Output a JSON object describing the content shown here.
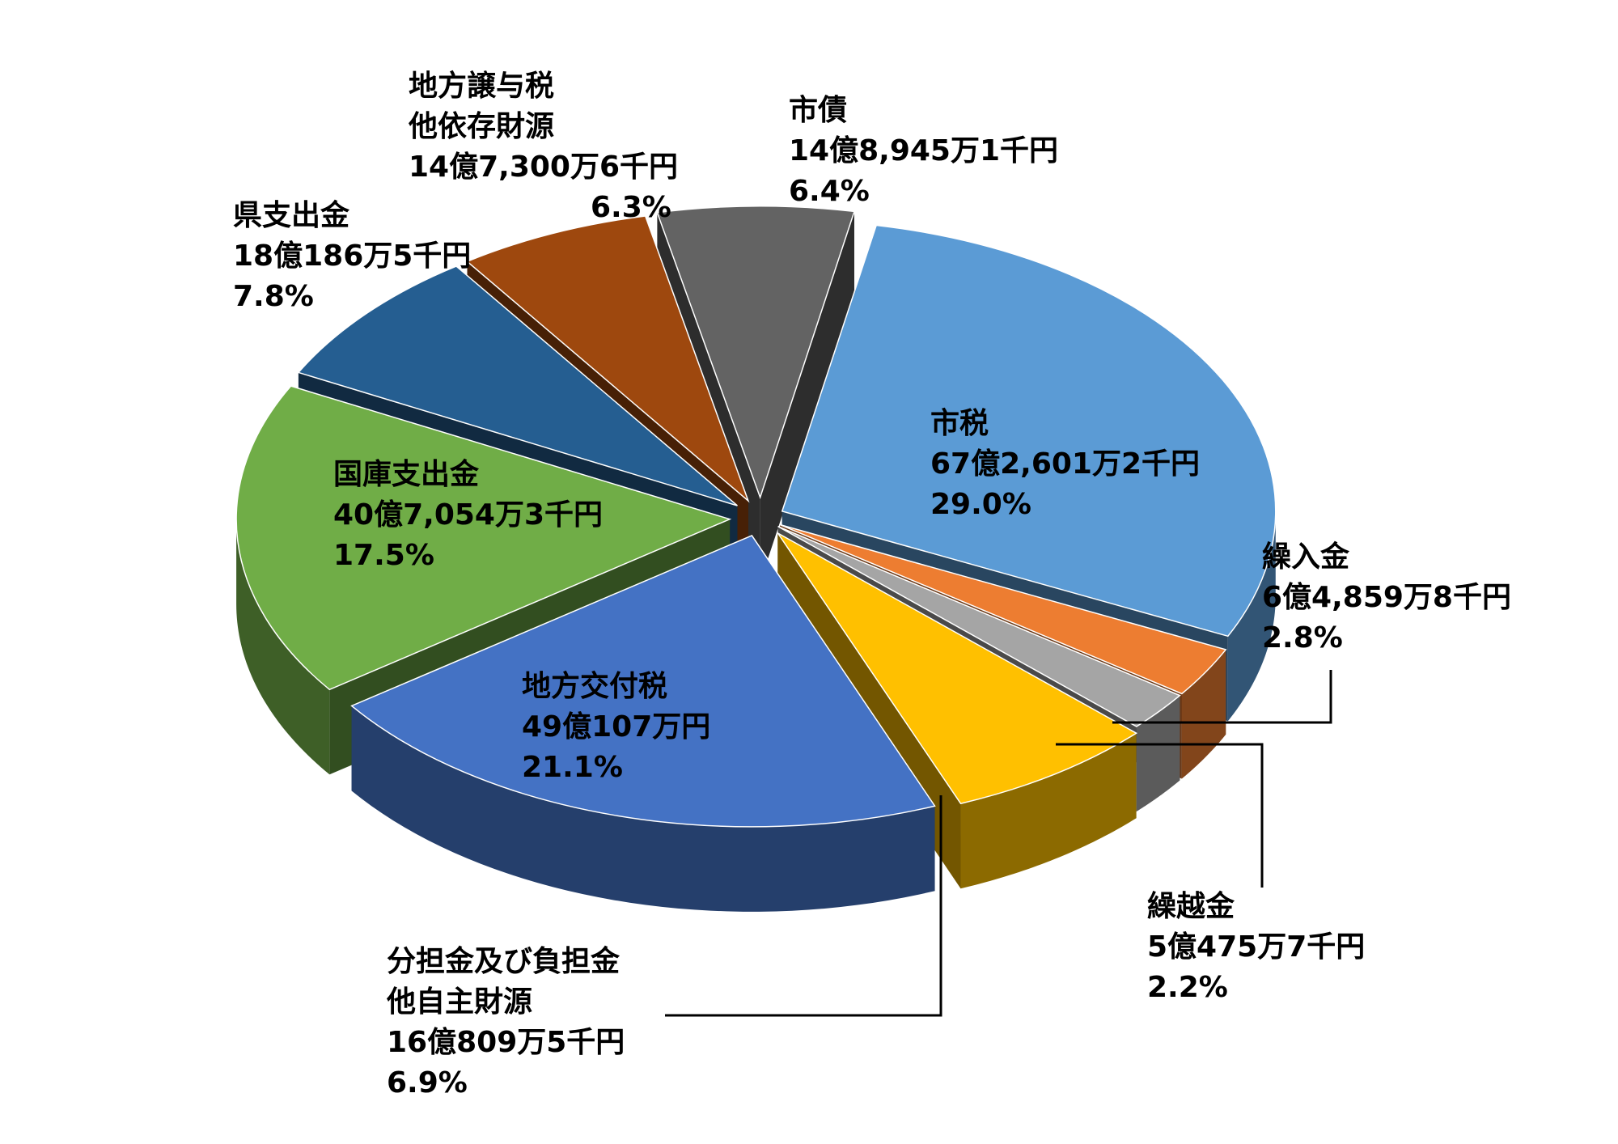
{
  "chart_data": {
    "type": "pie",
    "title": "",
    "style": "3d-exploded",
    "unit_label": "千円",
    "slices": [
      {
        "name": "市税",
        "value_text": "67億2,601万2千円",
        "percent": 29.0,
        "percent_text": "29.0%",
        "color": "#5B9BD5",
        "label_lines": [
          "市税"
        ]
      },
      {
        "name": "繰入金",
        "value_text": "6億4,859万8千円",
        "percent": 2.8,
        "percent_text": "2.8%",
        "color": "#ED7D31",
        "label_lines": [
          "繰入金"
        ]
      },
      {
        "name": "繰越金",
        "value_text": "5億475万7千円",
        "percent": 2.2,
        "percent_text": "2.2%",
        "color": "#A5A5A5",
        "label_lines": [
          "繰越金"
        ]
      },
      {
        "name": "分担金及び負担金他自主財源",
        "value_text": "16億809万5千円",
        "percent": 6.9,
        "percent_text": "6.9%",
        "color": "#FFC000",
        "label_lines": [
          "分担金及び負担金",
          "他自主財源"
        ]
      },
      {
        "name": "地方交付税",
        "value_text": "49億107万円",
        "percent": 21.1,
        "percent_text": "21.1%",
        "color": "#4472C4",
        "label_lines": [
          "地方交付税"
        ]
      },
      {
        "name": "国庫支出金",
        "value_text": "40億7,054万3千円",
        "percent": 17.5,
        "percent_text": "17.5%",
        "color": "#70AD47",
        "label_lines": [
          "国庫支出金"
        ]
      },
      {
        "name": "県支出金",
        "value_text": "18億186万5千円",
        "percent": 7.8,
        "percent_text": "7.8%",
        "color": "#255E91",
        "label_lines": [
          "県支出金"
        ]
      },
      {
        "name": "地方譲与税他依存財源",
        "value_text": "14億7,300万6千円",
        "percent": 6.3,
        "percent_text": "6.3%",
        "color": "#9E480E",
        "label_lines": [
          "地方譲与税",
          "他依存財源"
        ]
      },
      {
        "name": "市債",
        "value_text": "14億8,945万1千円",
        "percent": 6.4,
        "percent_text": "6.4%",
        "color": "#636363",
        "label_lines": [
          "市債"
        ]
      }
    ]
  }
}
